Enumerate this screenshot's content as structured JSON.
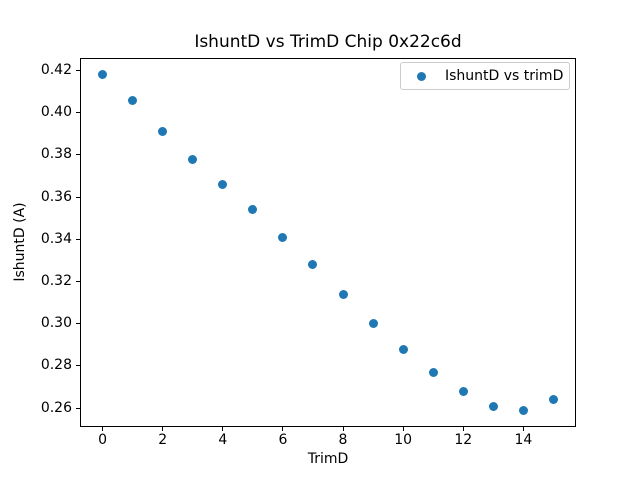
{
  "chart_data": {
    "type": "scatter",
    "title": "IshuntD vs TrimD Chip 0x22c6d",
    "xlabel": "TrimD",
    "ylabel": "IshuntD (A)",
    "legend_label": "IshuntD vs trimD",
    "legend_position": "upper right",
    "marker_color": "#1f77b4",
    "marker_shape": "circle",
    "grid": false,
    "x": [
      0,
      1,
      2,
      3,
      4,
      5,
      6,
      7,
      8,
      9,
      10,
      11,
      12,
      13,
      14,
      15
    ],
    "y": [
      0.418,
      0.406,
      0.391,
      0.378,
      0.366,
      0.354,
      0.341,
      0.328,
      0.314,
      0.3,
      0.288,
      0.277,
      0.268,
      0.261,
      0.259,
      0.264
    ],
    "xlim": [
      -0.75,
      15.75
    ],
    "ylim": [
      0.2511,
      0.4259
    ],
    "xticks": [
      0,
      2,
      4,
      6,
      8,
      10,
      12,
      14
    ],
    "xticklabels": [
      "0",
      "2",
      "4",
      "6",
      "8",
      "10",
      "12",
      "14"
    ],
    "yticks": [
      0.26,
      0.28,
      0.3,
      0.32,
      0.34,
      0.36,
      0.38,
      0.4,
      0.42
    ],
    "yticklabels": [
      "0.26",
      "0.28",
      "0.30",
      "0.32",
      "0.34",
      "0.36",
      "0.38",
      "0.40",
      "0.42"
    ]
  }
}
